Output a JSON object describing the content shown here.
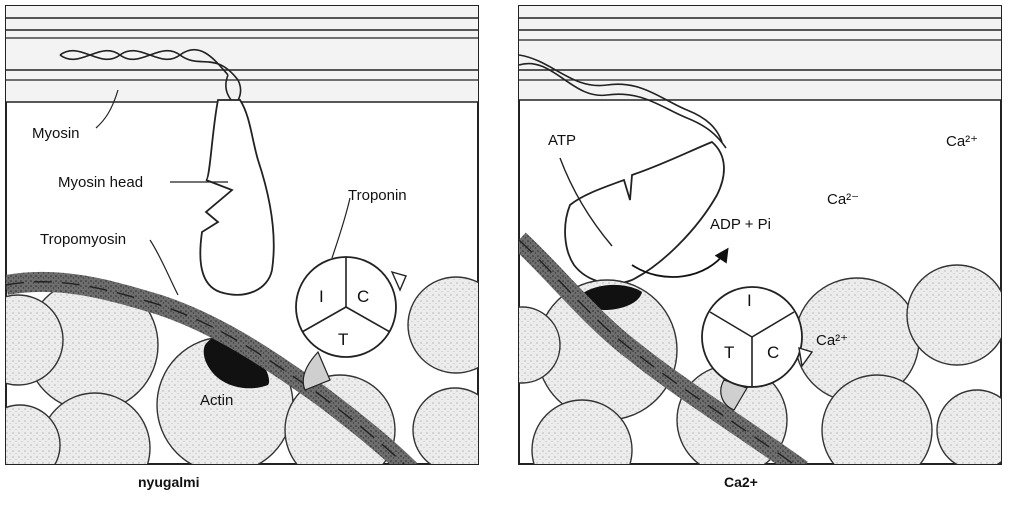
{
  "left_panel": {
    "labels": {
      "myosin": "Myosin",
      "myosin_head": "Myosin head",
      "tropomyosin": "Tropomyosin",
      "troponin": "Troponin",
      "actin": "Actin",
      "troponin_i": "I",
      "troponin_c": "C",
      "troponin_t": "T"
    },
    "caption": "nyugalmi"
  },
  "right_panel": {
    "labels": {
      "atp": "ATP",
      "adp_pi": "ADP + Pi",
      "ca_top_right": "Ca²⁺",
      "ca_middle": "Ca²⁻",
      "ca_troponin": "Ca²⁺",
      "troponin_i": "I",
      "troponin_c": "C",
      "troponin_t": "T"
    },
    "caption": "Ca2+"
  }
}
